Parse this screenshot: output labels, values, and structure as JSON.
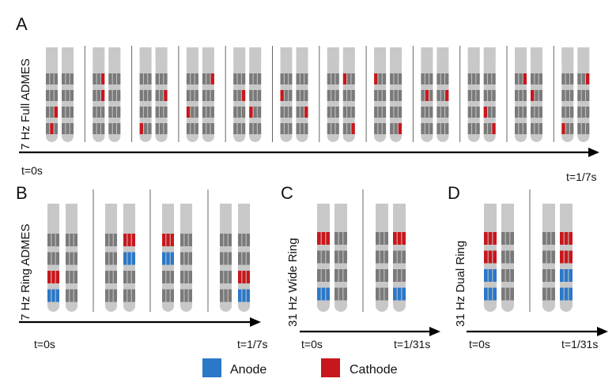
{
  "colors": {
    "anode": "#2a78c8",
    "cathode": "#c8171c",
    "lead": "#c8c8c8",
    "contact": "#7a7a7a",
    "divider": "#666666",
    "axis": "#000000"
  },
  "panels": [
    {
      "letter": "A",
      "ylabel": "7 Hz Full ADMES",
      "t_start": "t=0s",
      "t_end": "t=1/7s",
      "frames": [
        {
          "left": [
            [
              "",
              "",
              "",
              "",
              ""
            ],
            [
              "",
              "",
              "",
              "",
              ""
            ],
            [
              "",
              "",
              "",
              "",
              "c"
            ],
            [
              "",
              "",
              "",
              "",
              ""
            ],
            [
              "",
              "",
              "",
              "c",
              ""
            ]
          ],
          "right": []
        },
        {
          "left": [
            [
              "",
              "",
              "",
              "",
              ""
            ],
            [
              "",
              "",
              "",
              "c",
              ""
            ],
            [
              "",
              "",
              "",
              "c",
              ""
            ],
            [
              "",
              "",
              "",
              "",
              ""
            ],
            [
              "",
              "",
              "",
              "",
              ""
            ]
          ],
          "right": []
        },
        {
          "left": [
            [
              "",
              "",
              "",
              "",
              ""
            ],
            [
              "",
              "",
              "",
              "",
              ""
            ],
            [
              "",
              "",
              "",
              "",
              "c"
            ],
            [
              "",
              "",
              "",
              "",
              ""
            ],
            [
              "",
              "",
              "c",
              "",
              ""
            ]
          ],
          "right": []
        }
      ]
    },
    {
      "letter": "B",
      "ylabel": "7 Hz Ring ADMES",
      "t_start": "t=0s",
      "t_end": "t=1/7s"
    },
    {
      "letter": "C",
      "ylabel": "31 Hz Wide Ring",
      "t_start": "t=0s",
      "t_end": "t=1/31s"
    },
    {
      "letter": "D",
      "ylabel": "31 Hz Dual Ring",
      "t_start": "t=0s",
      "t_end": "t=1/31s"
    }
  ],
  "legend": {
    "anode": "Anode",
    "cathode": "Cathode"
  }
}
